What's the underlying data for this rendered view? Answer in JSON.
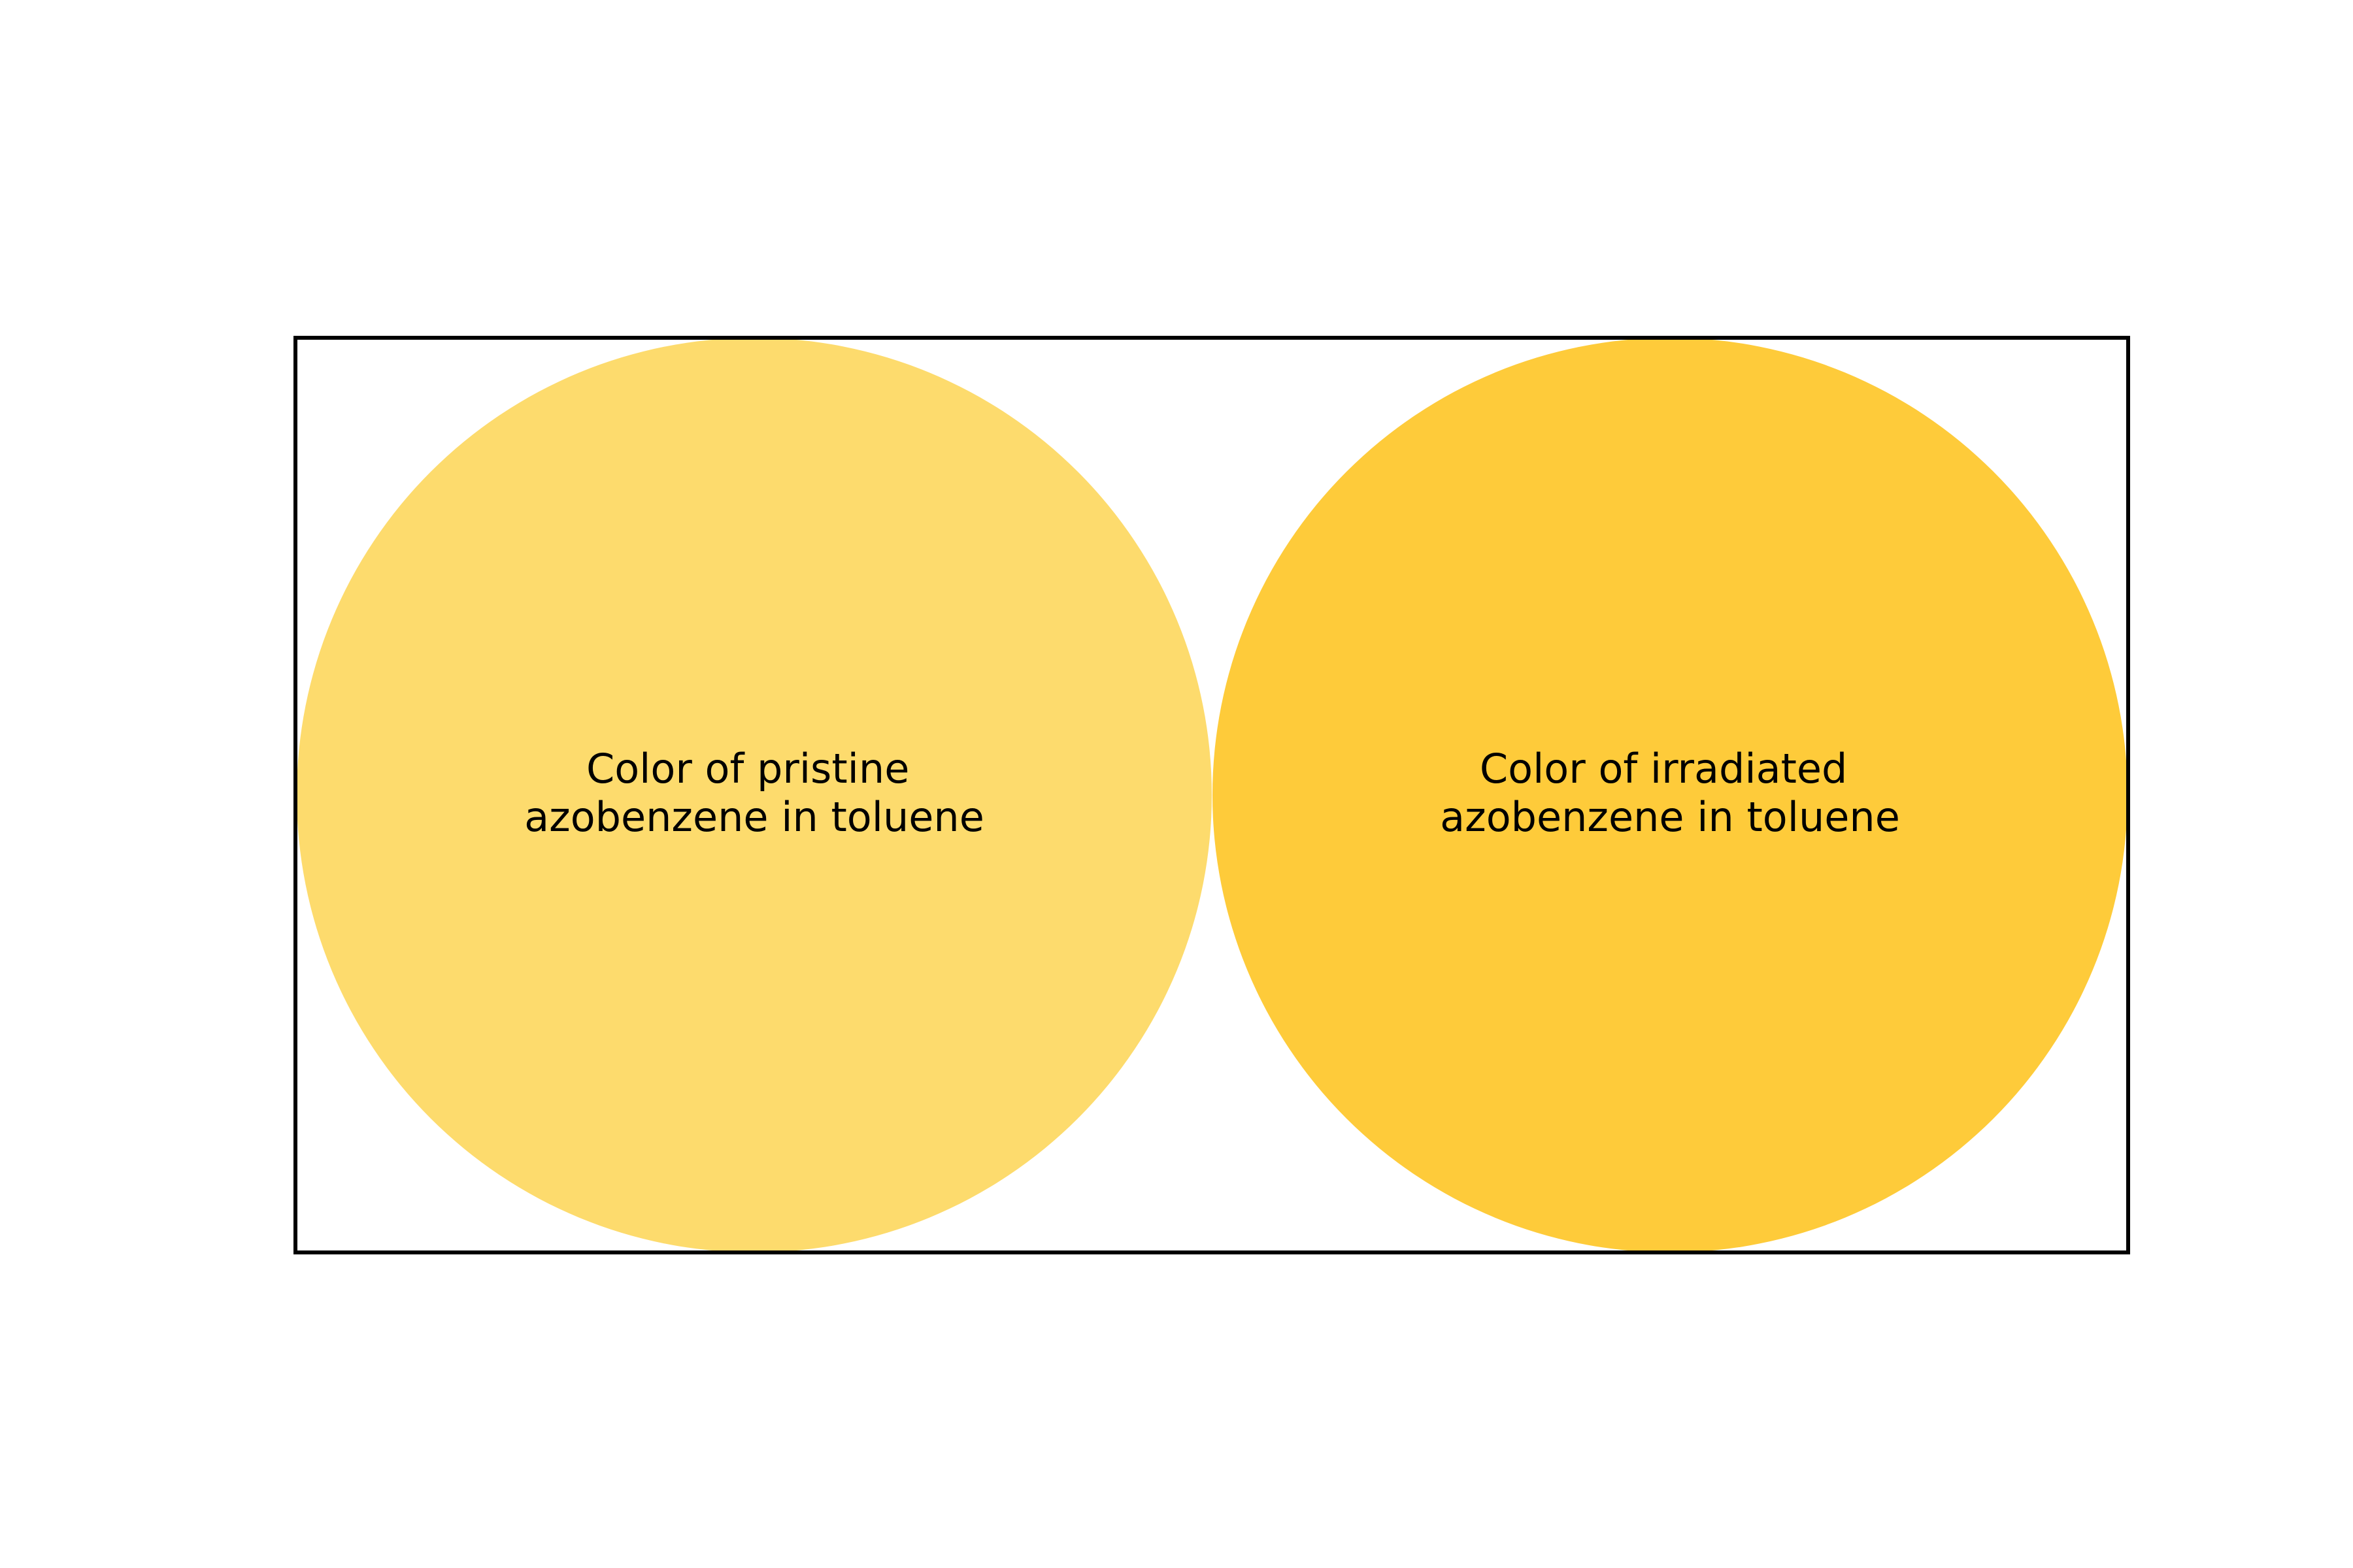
{
  "swatches": [
    {
      "label_lines": [
        "Color of pristine",
        "azobenzene in toluene"
      ],
      "color": "#fddb6d"
    },
    {
      "label_lines": [
        "Color of irradiated",
        "azobenzene in toluene"
      ],
      "color": "#fecb3a"
    }
  ],
  "frame_color": "#000000",
  "background_color": "#ffffff"
}
